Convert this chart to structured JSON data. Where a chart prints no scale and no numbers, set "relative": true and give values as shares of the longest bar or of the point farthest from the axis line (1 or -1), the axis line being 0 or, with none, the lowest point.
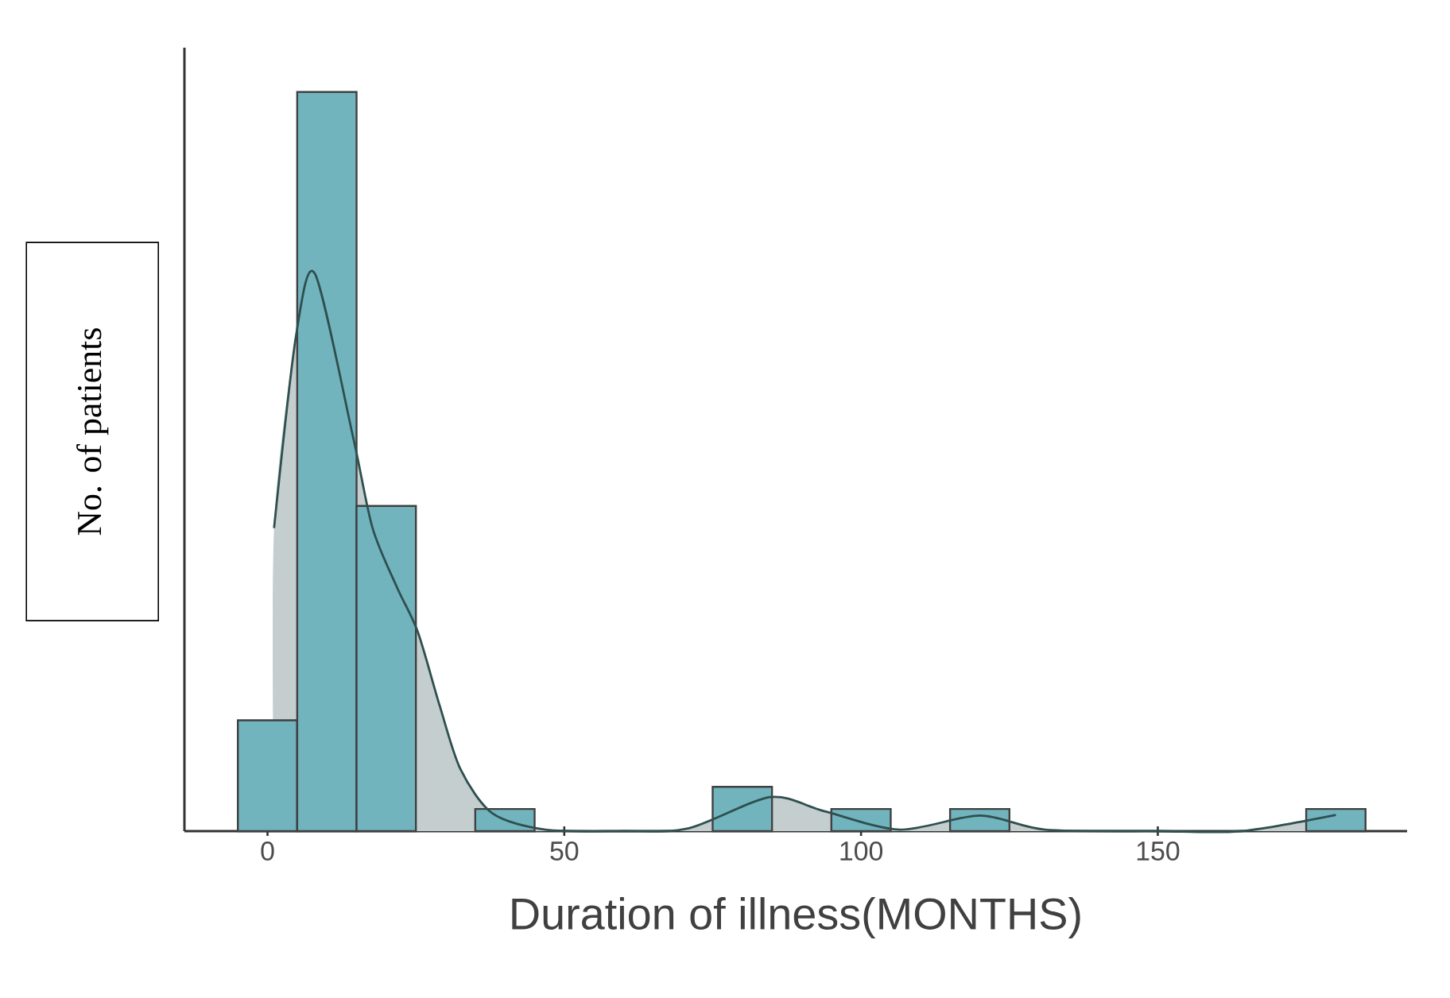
{
  "chart_data": {
    "type": "histogram",
    "relative": true,
    "xlabel": "Duration of illness(MONTHS)",
    "ylabel": "No. of patients",
    "xlim": [
      -14,
      192
    ],
    "xticks": [
      0,
      50,
      100,
      150
    ],
    "tick_labels": "x",
    "series": [
      {
        "type": "area",
        "color": "#2f4f4f",
        "x": [
          1.1,
          4.8,
          8,
          14.5,
          17.7,
          21.8,
          25.3,
          29,
          32.5,
          37.9,
          46.8,
          60,
          71,
          84.7,
          93.8,
          106.5,
          120,
          131,
          150,
          164,
          180
        ],
        "values": [
          0.41,
          0.67,
          0.754,
          0.53,
          0.41,
          0.33,
          0.27,
          0.17,
          0.084,
          0.024,
          0.002,
          0,
          0.004,
          0.046,
          0.027,
          0.002,
          0.021,
          0.002,
          0,
          0,
          0.022
        ]
      },
      {
        "color": "#72b4be",
        "bins": [
          -5,
          5,
          15,
          25,
          35,
          45,
          55,
          65,
          75,
          85,
          95,
          105,
          115,
          125,
          135,
          145,
          155,
          165,
          175,
          185
        ],
        "values": [
          0.15,
          1,
          0.44,
          0,
          0.03,
          0,
          0,
          0,
          0.06,
          0,
          0.03,
          0,
          0.03,
          0,
          0,
          0,
          0,
          0,
          0.03
        ]
      }
    ]
  }
}
